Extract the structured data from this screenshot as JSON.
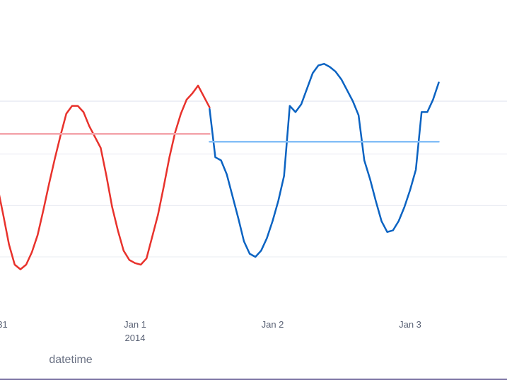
{
  "chart_data": {
    "type": "line",
    "xlabel": "datetime",
    "ylabel": "",
    "title": "",
    "grid": true,
    "x_ticks": [
      {
        "x": "2013-12-31",
        "label": "31",
        "sublabel": ""
      },
      {
        "x": "2014-01-01",
        "label": "Jan 1",
        "sublabel": "2014"
      },
      {
        "x": "2014-01-02",
        "label": "Jan 2",
        "sublabel": ""
      },
      {
        "x": "2014-01-03",
        "label": "Jan 3",
        "sublabel": ""
      }
    ],
    "y_gridlines": [
      0.0,
      0.33,
      0.66,
      1.0
    ],
    "ylim": [
      -0.2,
      1.5
    ],
    "series": [
      {
        "color": "#e8322c",
        "values": [
          [
            "2013-12-30 23:00",
            0.62
          ],
          [
            "2013-12-31 00:00",
            0.45
          ],
          [
            "2013-12-31 01:00",
            0.27
          ],
          [
            "2013-12-31 02:00",
            0.08
          ],
          [
            "2013-12-31 03:00",
            -0.05
          ],
          [
            "2013-12-31 04:00",
            -0.08
          ],
          [
            "2013-12-31 05:00",
            -0.05
          ],
          [
            "2013-12-31 06:00",
            0.03
          ],
          [
            "2013-12-31 07:00",
            0.14
          ],
          [
            "2013-12-31 08:00",
            0.3
          ],
          [
            "2013-12-31 09:00",
            0.47
          ],
          [
            "2013-12-31 10:00",
            0.63
          ],
          [
            "2013-12-31 11:00",
            0.78
          ],
          [
            "2013-12-31 12:00",
            0.92
          ],
          [
            "2013-12-31 13:00",
            0.97
          ],
          [
            "2013-12-31 14:00",
            0.97
          ],
          [
            "2013-12-31 15:00",
            0.93
          ],
          [
            "2013-12-31 16:00",
            0.84
          ],
          [
            "2013-12-31 17:00",
            0.77
          ],
          [
            "2013-12-31 18:00",
            0.7
          ],
          [
            "2013-12-31 19:00",
            0.52
          ],
          [
            "2013-12-31 20:00",
            0.32
          ],
          [
            "2013-12-31 21:00",
            0.17
          ],
          [
            "2013-12-31 22:00",
            0.04
          ],
          [
            "2013-12-31 23:00",
            -0.02
          ],
          [
            "2014-01-01 00:00",
            -0.04
          ],
          [
            "2014-01-01 01:00",
            -0.05
          ],
          [
            "2014-01-01 02:00",
            -0.01
          ],
          [
            "2014-01-01 03:00",
            0.13
          ],
          [
            "2014-01-01 04:00",
            0.27
          ],
          [
            "2014-01-01 05:00",
            0.45
          ],
          [
            "2014-01-01 06:00",
            0.64
          ],
          [
            "2014-01-01 07:00",
            0.8
          ],
          [
            "2014-01-01 08:00",
            0.92
          ],
          [
            "2014-01-01 09:00",
            1.01
          ],
          [
            "2014-01-01 10:00",
            1.05
          ],
          [
            "2014-01-01 11:00",
            1.1
          ],
          [
            "2014-01-01 12:00",
            1.03
          ],
          [
            "2014-01-01 13:00",
            0.96
          ]
        ]
      },
      {
        "color": "#f4a6ad",
        "values": [
          [
            "2013-12-30 23:00",
            0.79
          ],
          [
            "2014-01-01 13:00",
            0.79
          ]
        ]
      },
      {
        "color": "#0b63c2",
        "values": [
          [
            "2014-01-01 13:00",
            0.95
          ],
          [
            "2014-01-01 14:00",
            0.64
          ],
          [
            "2014-01-01 15:00",
            0.62
          ],
          [
            "2014-01-01 16:00",
            0.53
          ],
          [
            "2014-01-01 17:00",
            0.39
          ],
          [
            "2014-01-01 18:00",
            0.25
          ],
          [
            "2014-01-01 19:00",
            0.1
          ],
          [
            "2014-01-01 20:00",
            0.02
          ],
          [
            "2014-01-01 21:00",
            0.0
          ],
          [
            "2014-01-01 22:00",
            0.04
          ],
          [
            "2014-01-01 23:00",
            0.12
          ],
          [
            "2014-01-02 00:00",
            0.23
          ],
          [
            "2014-01-02 01:00",
            0.36
          ],
          [
            "2014-01-02 02:00",
            0.52
          ],
          [
            "2014-01-02 03:00",
            0.97
          ],
          [
            "2014-01-02 04:00",
            0.93
          ],
          [
            "2014-01-02 05:00",
            0.98
          ],
          [
            "2014-01-02 06:00",
            1.08
          ],
          [
            "2014-01-02 07:00",
            1.18
          ],
          [
            "2014-01-02 08:00",
            1.23
          ],
          [
            "2014-01-02 09:00",
            1.24
          ],
          [
            "2014-01-02 10:00",
            1.22
          ],
          [
            "2014-01-02 11:00",
            1.19
          ],
          [
            "2014-01-02 12:00",
            1.14
          ],
          [
            "2014-01-02 13:00",
            1.07
          ],
          [
            "2014-01-02 14:00",
            1.0
          ],
          [
            "2014-01-02 15:00",
            0.91
          ],
          [
            "2014-01-02 16:00",
            0.62
          ],
          [
            "2014-01-02 17:00",
            0.5
          ],
          [
            "2014-01-02 18:00",
            0.36
          ],
          [
            "2014-01-02 19:00",
            0.23
          ],
          [
            "2014-01-02 20:00",
            0.16
          ],
          [
            "2014-01-02 21:00",
            0.17
          ],
          [
            "2014-01-02 22:00",
            0.23
          ],
          [
            "2014-01-02 23:00",
            0.32
          ],
          [
            "2014-01-03 00:00",
            0.43
          ],
          [
            "2014-01-03 01:00",
            0.56
          ],
          [
            "2014-01-03 02:00",
            0.93
          ],
          [
            "2014-01-03 03:00",
            0.93
          ],
          [
            "2014-01-03 04:00",
            1.01
          ],
          [
            "2014-01-03 05:00",
            1.12
          ]
        ]
      },
      {
        "color": "#86bff7",
        "values": [
          [
            "2014-01-01 13:00",
            0.74
          ],
          [
            "2014-01-03 05:00",
            0.74
          ]
        ]
      }
    ]
  }
}
